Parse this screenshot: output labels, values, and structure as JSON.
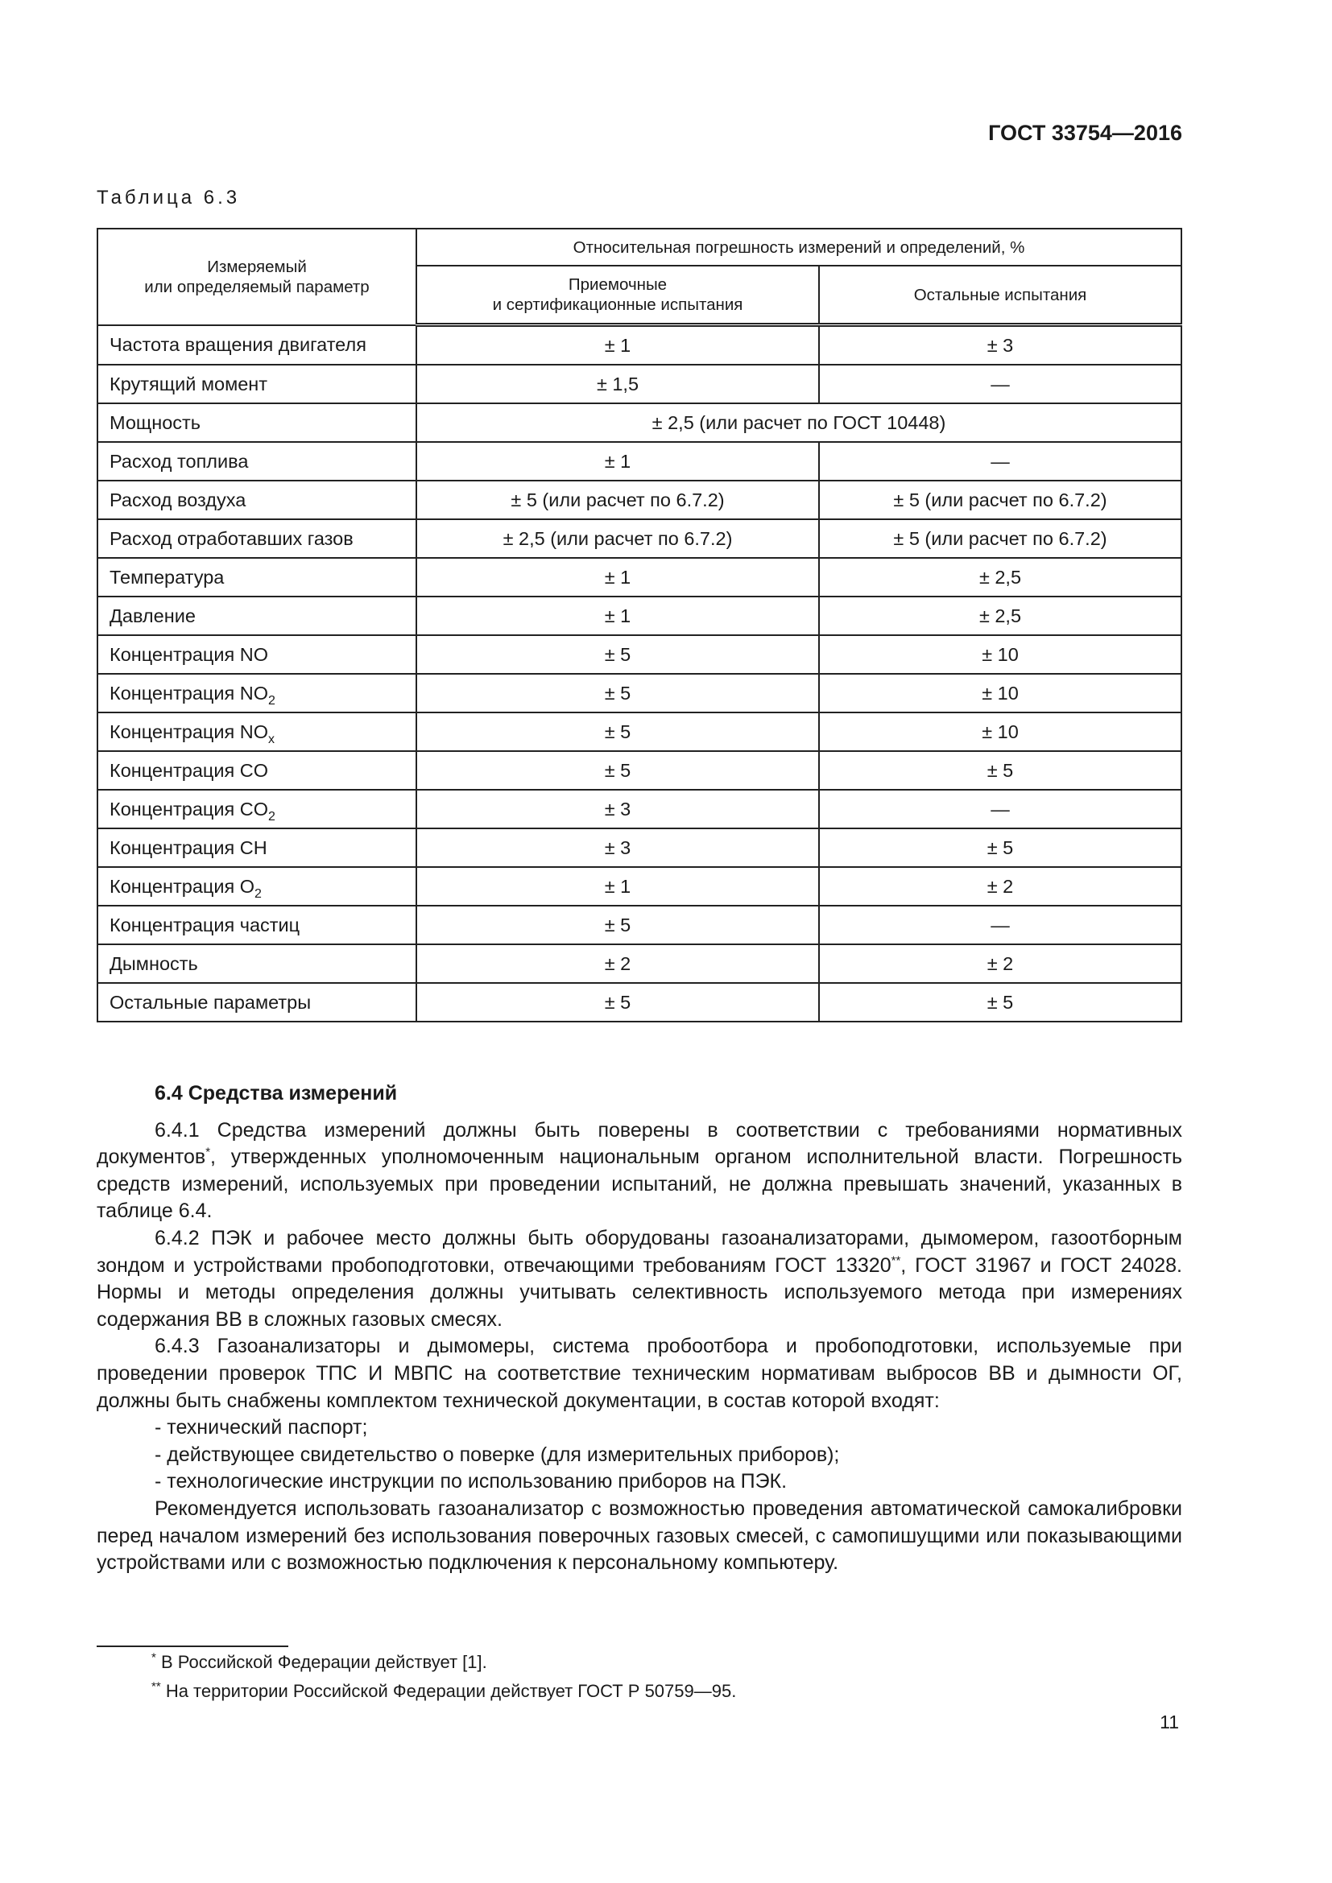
{
  "header": {
    "doc_id": "ГОСТ 33754—2016"
  },
  "table": {
    "caption": "Таблица 6.3",
    "col_param": "Измеряемый\nили определяемый параметр",
    "col_group": "Относительная погрешность измерений и определений, %",
    "col_a": "Приемочные\nи сертификационные испытания",
    "col_b": "Остальные испытания",
    "rows": [
      {
        "p": "Частота вращения двигателя",
        "a": "± 1",
        "b": "± 3"
      },
      {
        "p": "Крутящий момент",
        "a": "± 1,5",
        "b": "—"
      },
      {
        "p": "Мощность",
        "merged": "± 2,5 (или расчет по ГОСТ 10448)"
      },
      {
        "p": "Расход топлива",
        "a": "± 1",
        "b": "—"
      },
      {
        "p": "Расход воздуха",
        "a": "± 5 (или расчет по 6.7.2)",
        "b": "± 5 (или расчет по 6.7.2)"
      },
      {
        "p": "Расход отработавших газов",
        "a": "± 2,5 (или расчет по 6.7.2)",
        "b": "± 5 (или расчет по 6.7.2)"
      },
      {
        "p": "Температура",
        "a": "± 1",
        "b": "± 2,5"
      },
      {
        "p": "Давление",
        "a": "± 1",
        "b": "± 2,5"
      },
      {
        "p": "Концентрация NO",
        "a": "± 5",
        "b": "± 10"
      },
      {
        "p": "Концентрация NO",
        "sub": "2",
        "a": "± 5",
        "b": "± 10"
      },
      {
        "p": "Концентрация NO",
        "sub": "x",
        "a": "± 5",
        "b": "± 10"
      },
      {
        "p": "Концентрация CO",
        "a": "± 5",
        "b": "± 5"
      },
      {
        "p": "Концентрация CO",
        "sub": "2",
        "a": "± 3",
        "b": "—"
      },
      {
        "p": "Концентрация CH",
        "a": "± 3",
        "b": "± 5"
      },
      {
        "p": "Концентрация O",
        "sub": "2",
        "a": "± 1",
        "b": "± 2"
      },
      {
        "p": "Концентрация частиц",
        "a": "± 5",
        "b": "—"
      },
      {
        "p": "Дымность",
        "a": "± 2",
        "b": "± 2"
      },
      {
        "p": "Остальные параметры",
        "a": "± 5",
        "b": "± 5"
      }
    ]
  },
  "section": {
    "heading": "6.4 Средства измерений",
    "p1a": "6.4.1 Средства измерений должны быть поверены в соответствии с требованиями нормативных документов",
    "p1sup": "*",
    "p1b": ", утвержденных уполномоченным национальным органом исполнительной власти. Погрешность средств измерений, используемых при проведении испытаний, не должна превышать значений, указанных в таблице 6.4.",
    "p2a": "6.4.2 ПЭК и рабочее место должны быть оборудованы газоанализаторами, дымомером, газоотборным зондом и устройствами пробоподготовки, отвечающими требованиям ГОСТ 13320",
    "p2sup": "**",
    "p2b": ", ГОСТ 31967 и ГОСТ 24028. Нормы и методы определения должны учитывать селективность используемого метода при измерениях содержания ВВ в сложных газовых смесях.",
    "p3": "6.4.3 Газоанализаторы и дымомеры, система пробоотбора и пробоподготовки, используемые при проведении проверок ТПС И МВПС на соответствие техническим нормативам выбросов ВВ и дымности ОГ, должны быть снабжены комплектом технической документации, в состав которой входят:",
    "list": [
      "- технический паспорт;",
      "- действующее свидетельство о поверке (для измерительных приборов);",
      "- технологические инструкции по использованию приборов на ПЭК."
    ],
    "p4": "Рекомендуется использовать газоанализатор с возможностью проведения автоматической самокалибровки перед началом измерений без использования поверочных газовых смесей, с самопишущими или показывающими устройствами или с возможностью подключения к персональному компьютеру."
  },
  "footnotes": [
    {
      "mark": "*",
      "text": "В Российской Федерации действует [1]."
    },
    {
      "mark": "**",
      "text": "На территории Российской Федерации действует ГОСТ Р 50759—95."
    }
  ],
  "page_number": "11"
}
